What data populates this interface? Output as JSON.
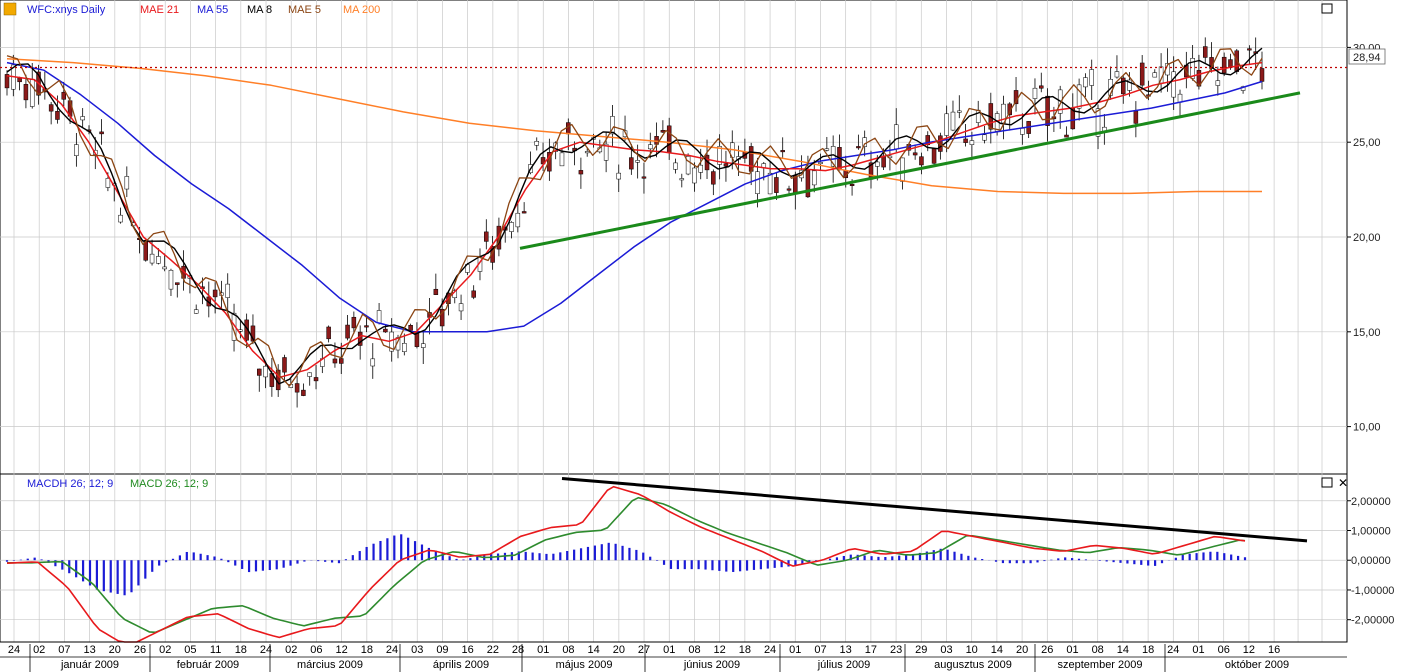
{
  "upper_legend": {
    "symbol": "WFC:xnys Daily",
    "indicators": [
      {
        "label": "MAE 21",
        "color": "#e8191c"
      },
      {
        "label": "MA 55",
        "color": "#1b1bd6"
      },
      {
        "label": "MA 8",
        "color": "#000000"
      },
      {
        "label": "MAE 5",
        "color": "#8b4513"
      },
      {
        "label": "MA 200",
        "color": "#ff7f27"
      }
    ]
  },
  "lower_legend": {
    "indicators": [
      {
        "label": "MACDH 26; 12; 9",
        "color": "#1b1bd6"
      },
      {
        "label": "MACD 26; 12; 9",
        "color": "#1f8a1f"
      }
    ]
  },
  "last_price_label": "28,94",
  "colors": {
    "candle_up": "#ffffff",
    "candle_down": "#8b1a1a",
    "wick": "#000000",
    "trendline_green": "#1a8a1a",
    "trendline_black": "#000000",
    "last_price_line": "#c00000",
    "macd_line": "#e8191c",
    "signal_line": "#2e8b2e",
    "hist": "#1b1bd6"
  },
  "chart_data": [
    {
      "type": "candlestick",
      "title": "WFC:xnys Daily",
      "ylim": [
        7.5,
        32.5
      ],
      "yticks": [
        "10,00",
        "15,00",
        "20,00",
        "25,00",
        "30,00"
      ],
      "last_price": 28.94,
      "date_ticks": [
        "24",
        "02",
        "07",
        "13",
        "20",
        "26",
        "02",
        "05",
        "11",
        "18",
        "24",
        "02",
        "06",
        "12",
        "18",
        "24",
        "03",
        "09",
        "16",
        "22",
        "28",
        "01",
        "08",
        "14",
        "20",
        "27",
        "01",
        "08",
        "12",
        "18",
        "24",
        "01",
        "07",
        "13",
        "17",
        "23",
        "29",
        "03",
        "10",
        "14",
        "20",
        "26",
        "01",
        "08",
        "14",
        "18",
        "24",
        "01",
        "06",
        "12",
        "16"
      ],
      "months": [
        "január 2009",
        "február 2009",
        "március 2009",
        "április 2009",
        "május 2009",
        "június 2009",
        "július 2009",
        "augusztus 2009",
        "szeptember 2009",
        "október 2009"
      ],
      "trendline": {
        "from": 19.4,
        "to": 27.6
      },
      "series": [
        {
          "name": "MAE 21",
          "values": [
            28.5,
            28.3,
            27.0,
            25.0,
            22.5,
            20.0,
            18.8,
            17.5,
            16.0,
            14.0,
            12.6,
            13.0,
            14.0,
            14.8,
            14.5,
            15.0,
            16.5,
            18.0,
            20.0,
            22.5,
            24.5,
            25.0,
            24.8,
            24.6,
            24.5,
            24.3,
            24.0,
            23.8,
            23.6,
            23.6,
            23.5,
            23.8,
            24.2,
            24.6,
            25.0,
            25.5,
            26.0,
            26.4,
            26.6,
            26.8,
            27.1,
            27.5,
            28.0,
            28.3,
            28.7,
            29.0,
            29.2
          ]
        },
        {
          "name": "MA 55",
          "values": [
            29.2,
            28.8,
            27.5,
            26.0,
            24.3,
            22.8,
            21.5,
            20.0,
            18.5,
            16.8,
            15.5,
            15.0,
            15.0,
            15.0,
            15.3,
            16.5,
            18.0,
            19.5,
            20.8,
            21.8,
            22.8,
            23.5,
            24.0,
            24.3,
            24.6,
            25.0,
            25.3,
            25.6,
            25.9,
            26.2,
            26.5,
            26.8,
            27.2,
            27.6,
            28.2
          ]
        },
        {
          "name": "MA 200",
          "values": [
            29.4,
            29.2,
            28.9,
            28.5,
            28.0,
            27.3,
            26.6,
            26.0,
            25.6,
            25.3,
            25.0,
            24.6,
            24.0,
            23.3,
            22.7,
            22.4,
            22.3,
            22.3,
            22.4,
            22.4
          ]
        }
      ]
    },
    {
      "type": "line",
      "title": "MACD 26; 12; 9",
      "ylim": [
        -2.75,
        2.9
      ],
      "yticks": [
        "2,00000",
        "1,00000",
        "0,00000",
        "-1,00000",
        "-2,00000"
      ],
      "trendline": {
        "from": 2.75,
        "to": 0.65
      },
      "series": [
        {
          "name": "MACD 26; 12; 9",
          "values": [
            -0.1,
            -0.05,
            -0.9,
            -2.3,
            -2.9,
            -2.4,
            -1.9,
            -1.8,
            -2.3,
            -2.6,
            -2.3,
            -2.2,
            -1.0,
            0.0,
            0.35,
            0.1,
            0.2,
            0.8,
            1.1,
            1.2,
            2.5,
            2.2,
            1.6,
            1.1,
            0.7,
            0.3,
            -0.2,
            0.0,
            0.4,
            0.2,
            0.3,
            1.0,
            0.8,
            0.6,
            0.4,
            0.3,
            0.5,
            0.4,
            0.2,
            0.5,
            0.8,
            0.65
          ]
        },
        {
          "name": "MACDH 26; 12; 9",
          "values": [
            -0.05,
            0.1,
            -0.4,
            -1.0,
            -1.2,
            -0.2,
            0.3,
            0.1,
            -0.4,
            -0.3,
            0.0,
            -0.1,
            0.5,
            0.9,
            0.4,
            0.0,
            0.2,
            0.3,
            0.2,
            0.4,
            0.6,
            0.3,
            -0.3,
            -0.3,
            -0.4,
            -0.3,
            -0.2,
            0.0,
            0.2,
            0.1,
            0.2,
            0.4,
            0.1,
            -0.1,
            -0.1,
            0.1,
            0.0,
            -0.1,
            -0.2,
            0.2,
            0.3,
            0.1
          ]
        }
      ]
    }
  ]
}
